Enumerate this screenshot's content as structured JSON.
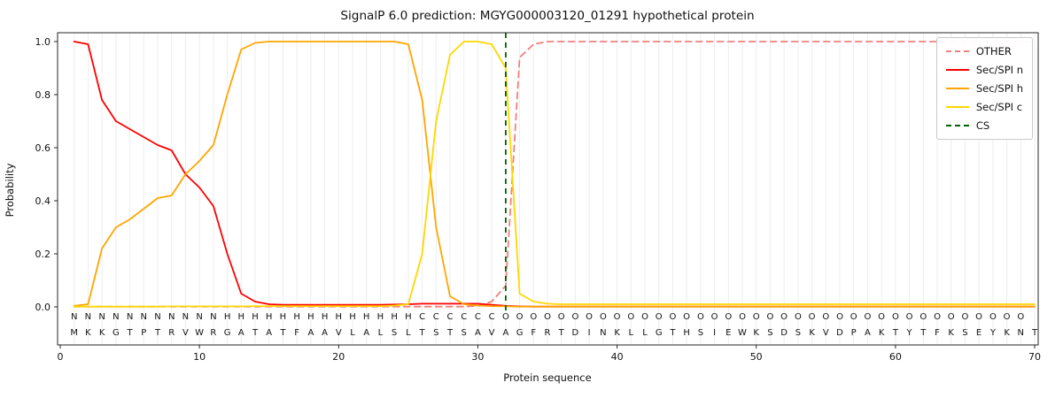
{
  "chart_data": {
    "type": "line",
    "title": "SignalP 6.0 prediction: MGYG000003120_01291 hypothetical protein",
    "xlabel": "Protein sequence",
    "ylabel": "Probability",
    "xlim": [
      0,
      71
    ],
    "ylim": [
      0.0,
      1.0
    ],
    "x_ticks": [
      0,
      10,
      20,
      30,
      40,
      50,
      60,
      70
    ],
    "y_ticks": [
      0.0,
      0.2,
      0.4,
      0.6,
      0.8,
      1.0
    ],
    "grid": "vertical lines at every residue position",
    "legend_position": "upper right",
    "positions": [
      1,
      2,
      3,
      4,
      5,
      6,
      7,
      8,
      9,
      10,
      11,
      12,
      13,
      14,
      15,
      16,
      17,
      18,
      19,
      20,
      21,
      22,
      23,
      24,
      25,
      26,
      27,
      28,
      29,
      30,
      31,
      32,
      33,
      34,
      35,
      36,
      37,
      38,
      39,
      40,
      41,
      42,
      43,
      44,
      45,
      46,
      47,
      48,
      49,
      50,
      51,
      52,
      53,
      54,
      55,
      56,
      57,
      58,
      59,
      60,
      61,
      62,
      63,
      64,
      65,
      66,
      67,
      68,
      69,
      70
    ],
    "series": [
      {
        "name": "OTHER",
        "color": "#f08080",
        "style": "dashed",
        "values": [
          0.001,
          0.001,
          0.001,
          0.001,
          0.001,
          0.001,
          0.001,
          0.001,
          0.001,
          0.001,
          0.001,
          0.001,
          0.001,
          0.001,
          0.001,
          0.001,
          0.001,
          0.001,
          0.001,
          0.001,
          0.001,
          0.001,
          0.001,
          0.001,
          0.001,
          0.001,
          0.001,
          0.001,
          0.001,
          0.004,
          0.02,
          0.08,
          0.94,
          0.99,
          1.0,
          1.0,
          1.0,
          1.0,
          1.0,
          1.0,
          1.0,
          1.0,
          1.0,
          1.0,
          1.0,
          1.0,
          1.0,
          1.0,
          1.0,
          1.0,
          1.0,
          1.0,
          1.0,
          1.0,
          1.0,
          1.0,
          1.0,
          1.0,
          1.0,
          1.0,
          1.0,
          1.0,
          1.0,
          1.0,
          1.0,
          1.0,
          1.0,
          1.0,
          1.0,
          1.0
        ]
      },
      {
        "name": "Sec/SPI n",
        "color": "#ff0000",
        "style": "solid",
        "values": [
          1.0,
          0.99,
          0.78,
          0.7,
          0.67,
          0.64,
          0.61,
          0.59,
          0.5,
          0.45,
          0.38,
          0.2,
          0.05,
          0.02,
          0.01,
          0.008,
          0.008,
          0.008,
          0.008,
          0.008,
          0.008,
          0.008,
          0.008,
          0.009,
          0.01,
          0.012,
          0.012,
          0.012,
          0.012,
          0.012,
          0.008,
          0.004,
          0.002,
          0.001,
          0.001,
          0.001,
          0.001,
          0.001,
          0.001,
          0.001,
          0.001,
          0.001,
          0.001,
          0.001,
          0.001,
          0.001,
          0.001,
          0.001,
          0.001,
          0.001,
          0.001,
          0.001,
          0.001,
          0.001,
          0.001,
          0.001,
          0.001,
          0.001,
          0.001,
          0.001,
          0.001,
          0.001,
          0.001,
          0.001,
          0.001,
          0.001,
          0.001,
          0.001,
          0.001,
          0.001
        ]
      },
      {
        "name": "Sec/SPI h",
        "color": "#ffa500",
        "style": "solid",
        "values": [
          0.004,
          0.01,
          0.22,
          0.3,
          0.33,
          0.37,
          0.41,
          0.42,
          0.5,
          0.55,
          0.61,
          0.8,
          0.97,
          0.995,
          1.0,
          1.0,
          1.0,
          1.0,
          1.0,
          1.0,
          1.0,
          1.0,
          1.0,
          1.0,
          0.99,
          0.78,
          0.3,
          0.04,
          0.01,
          0.005,
          0.003,
          0.002,
          0.001,
          0.001,
          0.001,
          0.001,
          0.001,
          0.001,
          0.001,
          0.001,
          0.001,
          0.001,
          0.001,
          0.001,
          0.001,
          0.001,
          0.001,
          0.001,
          0.001,
          0.001,
          0.001,
          0.001,
          0.001,
          0.001,
          0.001,
          0.001,
          0.001,
          0.001,
          0.001,
          0.001,
          0.001,
          0.001,
          0.001,
          0.001,
          0.001,
          0.001,
          0.001,
          0.001,
          0.001,
          0.001
        ]
      },
      {
        "name": "Sec/SPI c",
        "color": "#ffd700",
        "style": "solid",
        "values": [
          0.001,
          0.001,
          0.001,
          0.001,
          0.001,
          0.001,
          0.001,
          0.002,
          0.002,
          0.002,
          0.002,
          0.002,
          0.002,
          0.003,
          0.003,
          0.003,
          0.003,
          0.003,
          0.003,
          0.003,
          0.003,
          0.003,
          0.003,
          0.005,
          0.01,
          0.2,
          0.7,
          0.95,
          1.0,
          1.0,
          0.99,
          0.9,
          0.05,
          0.02,
          0.012,
          0.01,
          0.01,
          0.01,
          0.01,
          0.01,
          0.01,
          0.01,
          0.01,
          0.01,
          0.01,
          0.01,
          0.01,
          0.01,
          0.01,
          0.01,
          0.01,
          0.01,
          0.01,
          0.01,
          0.01,
          0.01,
          0.01,
          0.01,
          0.01,
          0.01,
          0.01,
          0.01,
          0.01,
          0.01,
          0.01,
          0.01,
          0.01,
          0.01,
          0.01,
          0.01
        ]
      }
    ],
    "cs_line": {
      "name": "CS",
      "position": 32,
      "color": "#006400",
      "style": "dashed"
    },
    "sequence": "MKKGTPTRVWRGATATFAAVLALSLTSTSAVAGFRTDINKLLGTHSIEWKSDSKVDPAKTYTFKSEYKNT",
    "regions": "NNNNNNNNNNNHHHHHHHHHHHHHHCCCCCCOOOOOOOOOOOOOOOOOOOOOOOOOOOOOOOOOOOOOO",
    "region_colors": {
      "N": "#ff0000",
      "H": "#ffa500",
      "C": "#ffd700",
      "O": "#7f7f7f"
    },
    "sequence_color": "#111111"
  },
  "legend": {
    "entries": [
      "OTHER",
      "Sec/SPI n",
      "Sec/SPI h",
      "Sec/SPI c",
      "CS"
    ]
  }
}
